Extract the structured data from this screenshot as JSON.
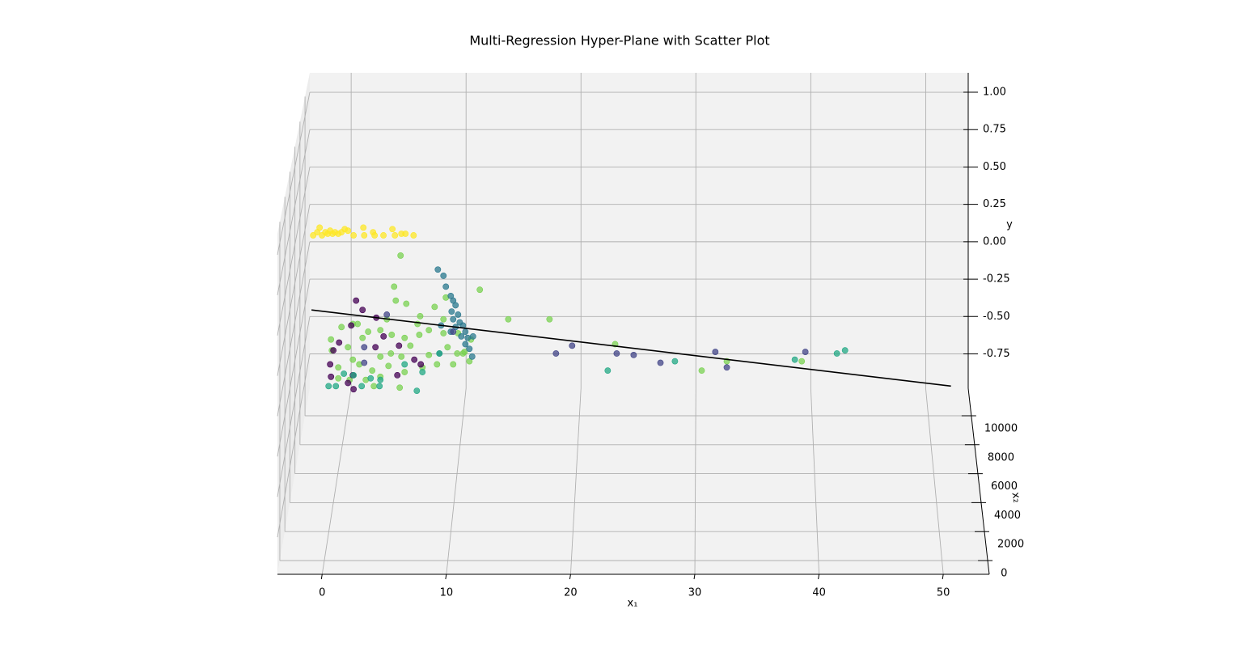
{
  "chart_data": {
    "type": "scatter3d",
    "title": "Multi-Regression Hyper-Plane with Scatter Plot",
    "x1_label": "x₁",
    "x2_label": "x₂",
    "y_label": "y",
    "x1lim": [
      -3.6,
      53.7
    ],
    "x2lim": [
      -950,
      11900
    ],
    "ylim": [
      -0.98,
      1.13
    ],
    "x1ticks": [
      0,
      10,
      20,
      30,
      40,
      50
    ],
    "x2ticks": [
      0,
      2000,
      4000,
      6000,
      8000,
      10000
    ],
    "yticks": [
      {
        "value": -0.75,
        "label": "-0.75"
      },
      {
        "value": -0.5,
        "label": "-0.50"
      },
      {
        "value": -0.25,
        "label": "-0.25"
      },
      {
        "value": 0,
        "label": "0.00"
      },
      {
        "value": 0.25,
        "label": "0.25"
      },
      {
        "value": 0.5,
        "label": "0.50"
      },
      {
        "value": 0.75,
        "label": "0.75"
      },
      {
        "value": 1,
        "label": "1.00"
      }
    ],
    "grid": true,
    "series": [
      {
        "color": "#fde725",
        "x2": 5500,
        "x1": [
          -1.97,
          -1.63,
          -1.43,
          -1.23,
          -0.95,
          -0.75,
          -0.55,
          -0.35,
          -0.14,
          0.13,
          0.4,
          0.67,
          0.94,
          1.41,
          2.23,
          2.3,
          3.04,
          3.17,
          3.91,
          4.66,
          4.87,
          5.41,
          5.75,
          6.43
        ],
        "y": [
          0.6,
          0.62,
          0.65,
          0.6,
          0.62,
          0.61,
          0.63,
          0.61,
          0.62,
          0.61,
          0.62,
          0.64,
          0.63,
          0.6,
          0.65,
          0.6,
          0.62,
          0.6,
          0.6,
          0.64,
          0.6,
          0.61,
          0.61,
          0.6
        ]
      },
      {
        "color": "#7ad151",
        "x2": 5500,
        "x1": [
          5.34,
          4.8,
          11.97,
          5.82,
          4.94,
          6.98,
          8.19,
          9.13,
          14.35,
          17.8,
          1.35,
          1.75,
          0.4,
          2.63,
          3.65,
          4.6,
          5.68,
          6.91,
          7.71,
          8.93,
          10.15,
          11.23,
          -0.48,
          -0.41,
          0.94,
          2.16,
          3.65,
          4.53,
          5.41,
          6.16,
          7.71,
          9.27,
          10.69,
          10.08,
          0.13,
          1.35,
          1.89,
          2.97,
          3.65,
          4.33,
          5.68,
          7.17,
          8.39,
          9.74,
          11.1,
          0.13,
          1.08,
          2.43,
          3.11,
          5.27,
          23.29,
          32.63,
          30.53,
          8.93,
          6.76,
          10.56,
          4.19,
          38.9
        ],
        "y": [
          0.47,
          0.27,
          0.25,
          0.16,
          0.18,
          0.08,
          0.14,
          0.2,
          0.06,
          0.06,
          0.03,
          0.03,
          0.01,
          -0.02,
          -0.01,
          -0.04,
          -0.06,
          -0.04,
          -0.01,
          -0.03,
          -0.03,
          -0.07,
          -0.07,
          -0.14,
          -0.12,
          -0.06,
          -0.18,
          -0.16,
          -0.18,
          -0.11,
          -0.17,
          -0.12,
          -0.15,
          -0.16,
          -0.25,
          -0.2,
          -0.23,
          -0.27,
          -0.31,
          -0.24,
          -0.28,
          -0.25,
          -0.23,
          -0.23,
          -0.21,
          -0.32,
          -0.33,
          -0.33,
          -0.37,
          -0.38,
          -0.1,
          -0.21,
          -0.27,
          0.06,
          0.03,
          -0.16,
          0.06,
          -0.21
        ]
      },
      {
        "color": "#2a788e",
        "x2": 5500,
        "x1": [
          8.46,
          8.93,
          9.13,
          9.54,
          9.74,
          9.94,
          9.61,
          10.15,
          10.29,
          9.94,
          10.56,
          10.76,
          10.42,
          10.96,
          10.76,
          11.1,
          11.33,
          9.74,
          8.73,
          11.4,
          8.59,
          9.54
        ],
        "y": [
          0.38,
          0.34,
          0.27,
          0.21,
          0.18,
          0.15,
          0.11,
          0.09,
          0.04,
          0.01,
          0.02,
          -0.02,
          -0.05,
          -0.06,
          -0.1,
          -0.13,
          -0.18,
          0.06,
          0.02,
          -0.05,
          -0.16,
          -0.02
        ]
      },
      {
        "color": "#414487",
        "x2": 5500,
        "x1": [
          18.34,
          19.69,
          23.42,
          24.84,
          27.08,
          31.67,
          32.63,
          39.2,
          2.3,
          4.19,
          2.3,
          9.74
        ],
        "y": [
          -0.16,
          -0.11,
          -0.16,
          -0.17,
          -0.22,
          -0.15,
          -0.25,
          -0.15,
          -0.22,
          0.09,
          -0.12,
          -0.02
        ]
      },
      {
        "color": "#440154",
        "x2": 5500,
        "x1": [
          1.62,
          2.16,
          3.31,
          1.21,
          0.2,
          -0.28,
          3.24,
          3.92,
          6.49,
          5.21,
          -0.55,
          -0.48,
          1.35,
          1.41,
          0.94,
          5.07,
          7.03
        ],
        "y": [
          0.18,
          0.12,
          0.07,
          0.02,
          -0.09,
          -0.14,
          -0.12,
          -0.05,
          -0.2,
          -0.11,
          -0.23,
          -0.31,
          -0.3,
          -0.39,
          -0.35,
          -0.3,
          -0.23
        ]
      },
      {
        "color": "#22a884",
        "x2": 5500,
        "x1": [
          -0.68,
          -0.07,
          0.6,
          1.41,
          2.09,
          2.84,
          3.65,
          5.68,
          6.7,
          7.17,
          8.59,
          22.67,
          28.29,
          38.32,
          41.84,
          42.52,
          3.58
        ],
        "y": [
          -0.37,
          -0.37,
          -0.29,
          -0.3,
          -0.37,
          -0.32,
          -0.33,
          -0.23,
          -0.4,
          -0.28,
          -0.16,
          -0.27,
          -0.21,
          -0.2,
          -0.16,
          -0.14,
          -0.37
        ]
      }
    ],
    "plane": {
      "color": "#000000",
      "x2": 5500,
      "x1": [
        -2.11,
        51.38
      ],
      "y": [
        0.12,
        -0.37
      ]
    }
  }
}
